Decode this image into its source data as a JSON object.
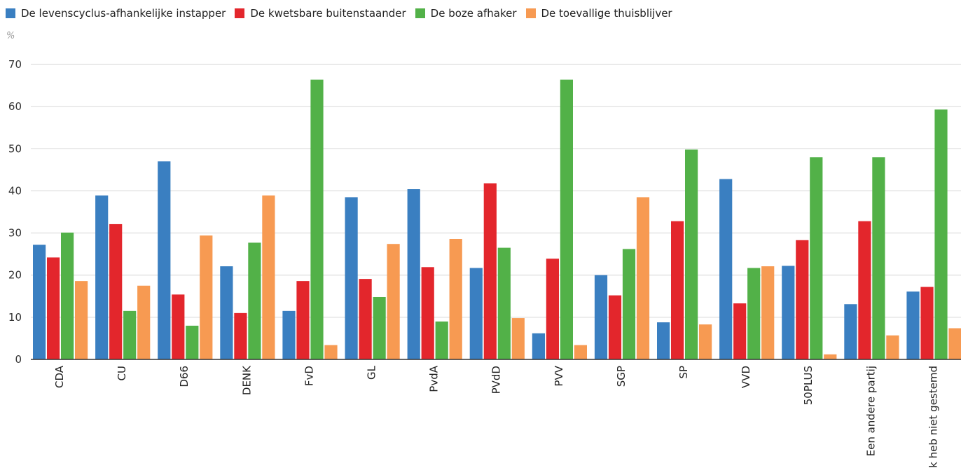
{
  "chart_data": {
    "type": "bar",
    "ylabel": "%",
    "ylim": [
      0,
      70
    ],
    "yticks": [
      0,
      10,
      20,
      30,
      40,
      50,
      60,
      70
    ],
    "grid": true,
    "legend_position": "top-left",
    "categories": [
      "CDA",
      "CU",
      "D66",
      "DENK",
      "FvD",
      "GL",
      "PvdA",
      "PVdD",
      "PVV",
      "SGP",
      "SP",
      "VVD",
      "50PLUS",
      "Een andere partij",
      "Ik heb niet gestemd"
    ],
    "series": [
      {
        "name": "De levenscyclus-afhankelijke instapper",
        "color": "#3a7fc1",
        "values": [
          27.2,
          38.9,
          47.0,
          22.1,
          11.5,
          38.5,
          40.4,
          21.7,
          6.2,
          20.0,
          8.8,
          42.8,
          22.2,
          13.1,
          16.1
        ]
      },
      {
        "name": "De kwetsbare buitenstaander",
        "color": "#e3262c",
        "values": [
          24.2,
          32.1,
          15.4,
          11.0,
          18.6,
          19.1,
          21.9,
          41.8,
          23.9,
          15.2,
          32.8,
          13.3,
          28.3,
          32.8,
          17.2
        ]
      },
      {
        "name": "De boze afhaker",
        "color": "#52b148",
        "values": [
          30.1,
          11.5,
          8.0,
          27.7,
          66.4,
          14.8,
          9.0,
          26.5,
          66.4,
          26.2,
          49.8,
          21.7,
          48.0,
          48.0,
          59.3
        ]
      },
      {
        "name": "De toevallige thuisblijver",
        "color": "#f79a52",
        "values": [
          18.6,
          17.5,
          29.4,
          38.9,
          3.4,
          27.4,
          28.6,
          9.8,
          3.4,
          38.5,
          8.3,
          22.1,
          1.2,
          5.7,
          7.4
        ]
      }
    ]
  }
}
